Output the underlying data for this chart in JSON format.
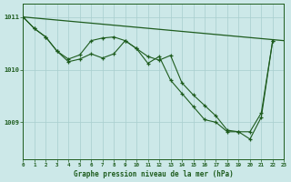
{
  "title": "Graphe pression niveau de la mer (hPa)",
  "bg_color": "#cce8e8",
  "line_color": "#1e5c1e",
  "grid_color": "#a8cece",
  "xlim": [
    0,
    23
  ],
  "ylim": [
    1008.3,
    1011.25
  ],
  "yticks": [
    1009,
    1010,
    1011
  ],
  "xticks": [
    0,
    1,
    2,
    3,
    4,
    5,
    6,
    7,
    8,
    9,
    10,
    11,
    12,
    13,
    14,
    15,
    16,
    17,
    18,
    19,
    20,
    21,
    22,
    23
  ],
  "series_straight": {
    "x": [
      0,
      23
    ],
    "y": [
      1011.0,
      1010.55
    ]
  },
  "series1": {
    "x": [
      0,
      1,
      2,
      3,
      4,
      5,
      6,
      7,
      8,
      9,
      10,
      11,
      12,
      13,
      14,
      15,
      16,
      17,
      18,
      19,
      20,
      21,
      22
    ],
    "y": [
      1011.0,
      1010.78,
      1010.62,
      1010.35,
      1010.2,
      1010.28,
      1010.55,
      1010.6,
      1010.62,
      1010.55,
      1010.4,
      1010.25,
      1010.18,
      1010.27,
      1009.75,
      1009.52,
      1009.32,
      1009.12,
      1008.85,
      1008.82,
      1008.82,
      1009.18,
      1010.55
    ]
  },
  "series2": {
    "x": [
      0,
      1,
      2,
      3,
      4,
      5,
      6,
      7,
      8,
      9,
      10,
      11,
      12,
      13,
      14,
      15,
      16,
      17,
      18,
      19,
      20,
      21,
      22
    ],
    "y": [
      1011.0,
      1010.78,
      1010.62,
      1010.35,
      1010.15,
      1010.2,
      1010.3,
      1010.22,
      1010.3,
      1010.55,
      1010.4,
      1010.12,
      1010.25,
      1009.8,
      1009.55,
      1009.3,
      1009.05,
      1009.0,
      1008.82,
      1008.82,
      1008.68,
      1009.1,
      1010.55
    ]
  }
}
